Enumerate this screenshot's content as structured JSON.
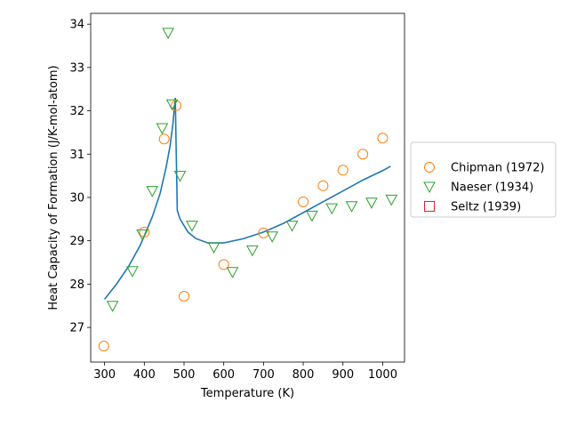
{
  "chart_data": {
    "type": "scatter",
    "title": "",
    "xlabel": "Temperature (K)",
    "ylabel": "Heat Capacity of Formation (J/K-mol-atom)",
    "xlim": [
      265,
      1055
    ],
    "ylim": [
      26.2,
      34.25
    ],
    "xticks": [
      300,
      400,
      500,
      600,
      700,
      800,
      900,
      1000
    ],
    "yticks": [
      27,
      28,
      29,
      30,
      31,
      32,
      33,
      34
    ],
    "grid": false,
    "legend_position": "outside-right",
    "fit_curve": {
      "color": "#1f77b4",
      "points": [
        [
          300,
          27.65
        ],
        [
          330,
          28.0
        ],
        [
          360,
          28.4
        ],
        [
          390,
          28.9
        ],
        [
          420,
          29.55
        ],
        [
          440,
          30.1
        ],
        [
          455,
          30.7
        ],
        [
          465,
          31.2
        ],
        [
          472,
          31.7
        ],
        [
          476,
          32.1
        ],
        [
          478,
          32.3
        ],
        [
          480,
          31.2
        ],
        [
          483,
          29.7
        ],
        [
          490,
          29.5
        ],
        [
          510,
          29.2
        ],
        [
          530,
          29.05
        ],
        [
          560,
          28.95
        ],
        [
          600,
          28.95
        ],
        [
          650,
          29.05
        ],
        [
          700,
          29.2
        ],
        [
          750,
          29.4
        ],
        [
          800,
          29.65
        ],
        [
          850,
          29.9
        ],
        [
          900,
          30.15
        ],
        [
          950,
          30.4
        ],
        [
          1000,
          30.62
        ],
        [
          1020,
          30.72
        ]
      ]
    },
    "series": [
      {
        "name": "Chipman (1972)",
        "marker": "circle",
        "color": "#ff7f0e",
        "points": [
          [
            298,
            26.57
          ],
          [
            400,
            29.2
          ],
          [
            450,
            31.35
          ],
          [
            480,
            32.12
          ],
          [
            500,
            27.72
          ],
          [
            600,
            28.45
          ],
          [
            700,
            29.18
          ],
          [
            800,
            29.9
          ],
          [
            850,
            30.27
          ],
          [
            900,
            30.63
          ],
          [
            950,
            31.0
          ],
          [
            1000,
            31.37
          ]
        ]
      },
      {
        "name": "Naeser (1934)",
        "marker": "triangle-down",
        "color": "#2ca02c",
        "points": [
          [
            320,
            27.5
          ],
          [
            370,
            28.3
          ],
          [
            395,
            29.15
          ],
          [
            420,
            30.15
          ],
          [
            445,
            31.6
          ],
          [
            460,
            33.8
          ],
          [
            470,
            32.15
          ],
          [
            490,
            30.5
          ],
          [
            520,
            29.35
          ],
          [
            575,
            28.85
          ],
          [
            622,
            28.28
          ],
          [
            672,
            28.78
          ],
          [
            722,
            29.1
          ],
          [
            772,
            29.35
          ],
          [
            822,
            29.58
          ],
          [
            872,
            29.75
          ],
          [
            922,
            29.8
          ],
          [
            972,
            29.88
          ],
          [
            1022,
            29.95
          ]
        ]
      },
      {
        "name": "Seltz (1939)",
        "marker": "square",
        "color": "#d62728",
        "points": []
      }
    ]
  }
}
